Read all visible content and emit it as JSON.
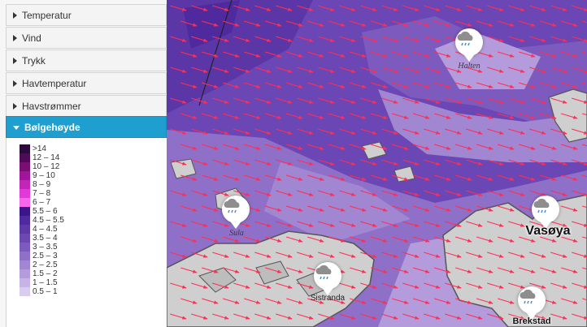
{
  "sidebar": {
    "items": [
      {
        "label": "Temperatur",
        "active": false
      },
      {
        "label": "Vind",
        "active": false
      },
      {
        "label": "Trykk",
        "active": false
      },
      {
        "label": "Havtemperatur",
        "active": false
      },
      {
        "label": "Havstrømmer",
        "active": false
      },
      {
        "label": "Bølgehøyde",
        "active": true
      }
    ]
  },
  "legend": {
    "rows": [
      {
        "label": ">14",
        "color": "#2b0a3d"
      },
      {
        "label": "12 – 14",
        "color": "#4f0b55"
      },
      {
        "label": "10 – 12",
        "color": "#7a0e74"
      },
      {
        "label": "9 – 10",
        "color": "#a0159a"
      },
      {
        "label": "8 – 9",
        "color": "#c425b9"
      },
      {
        "label": "7 – 8",
        "color": "#e03ad7"
      },
      {
        "label": "6 – 7",
        "color": "#f866ee"
      },
      {
        "label": "5.5 – 6",
        "color": "#3a168c"
      },
      {
        "label": "4.5 – 5.5",
        "color": "#4f2a9e"
      },
      {
        "label": "4 – 4.5",
        "color": "#5e39a8"
      },
      {
        "label": "3.5 – 4",
        "color": "#6c48b3"
      },
      {
        "label": "3 – 3.5",
        "color": "#7d5bbe"
      },
      {
        "label": "2.5 – 3",
        "color": "#8f70c8"
      },
      {
        "label": "2 – 2.5",
        "color": "#a186d2"
      },
      {
        "label": "1.5 – 2",
        "color": "#b49cdc"
      },
      {
        "label": "1 – 1.5",
        "color": "#c7b4e6"
      },
      {
        "label": "0.5 – 1",
        "color": "#d9ccef"
      }
    ]
  },
  "map": {
    "places": [
      {
        "name": "Halten",
        "style": "italic"
      },
      {
        "name": "Sula",
        "style": "italic"
      },
      {
        "name": "Sistranda",
        "style": "sans"
      },
      {
        "name": "Vasøya",
        "style": "big"
      },
      {
        "name": "Brekstad",
        "style": "bold"
      }
    ],
    "markers": [
      {
        "icon": "rain-cloud-icon"
      },
      {
        "icon": "rain-cloud-icon"
      },
      {
        "icon": "rain-cloud-icon"
      },
      {
        "icon": "rain-cloud-icon"
      },
      {
        "icon": "rain-cloud-icon"
      }
    ],
    "colors": {
      "wave_arrow": "#ff2e55",
      "land": "#cfcfcf",
      "coastline": "#555555"
    }
  }
}
